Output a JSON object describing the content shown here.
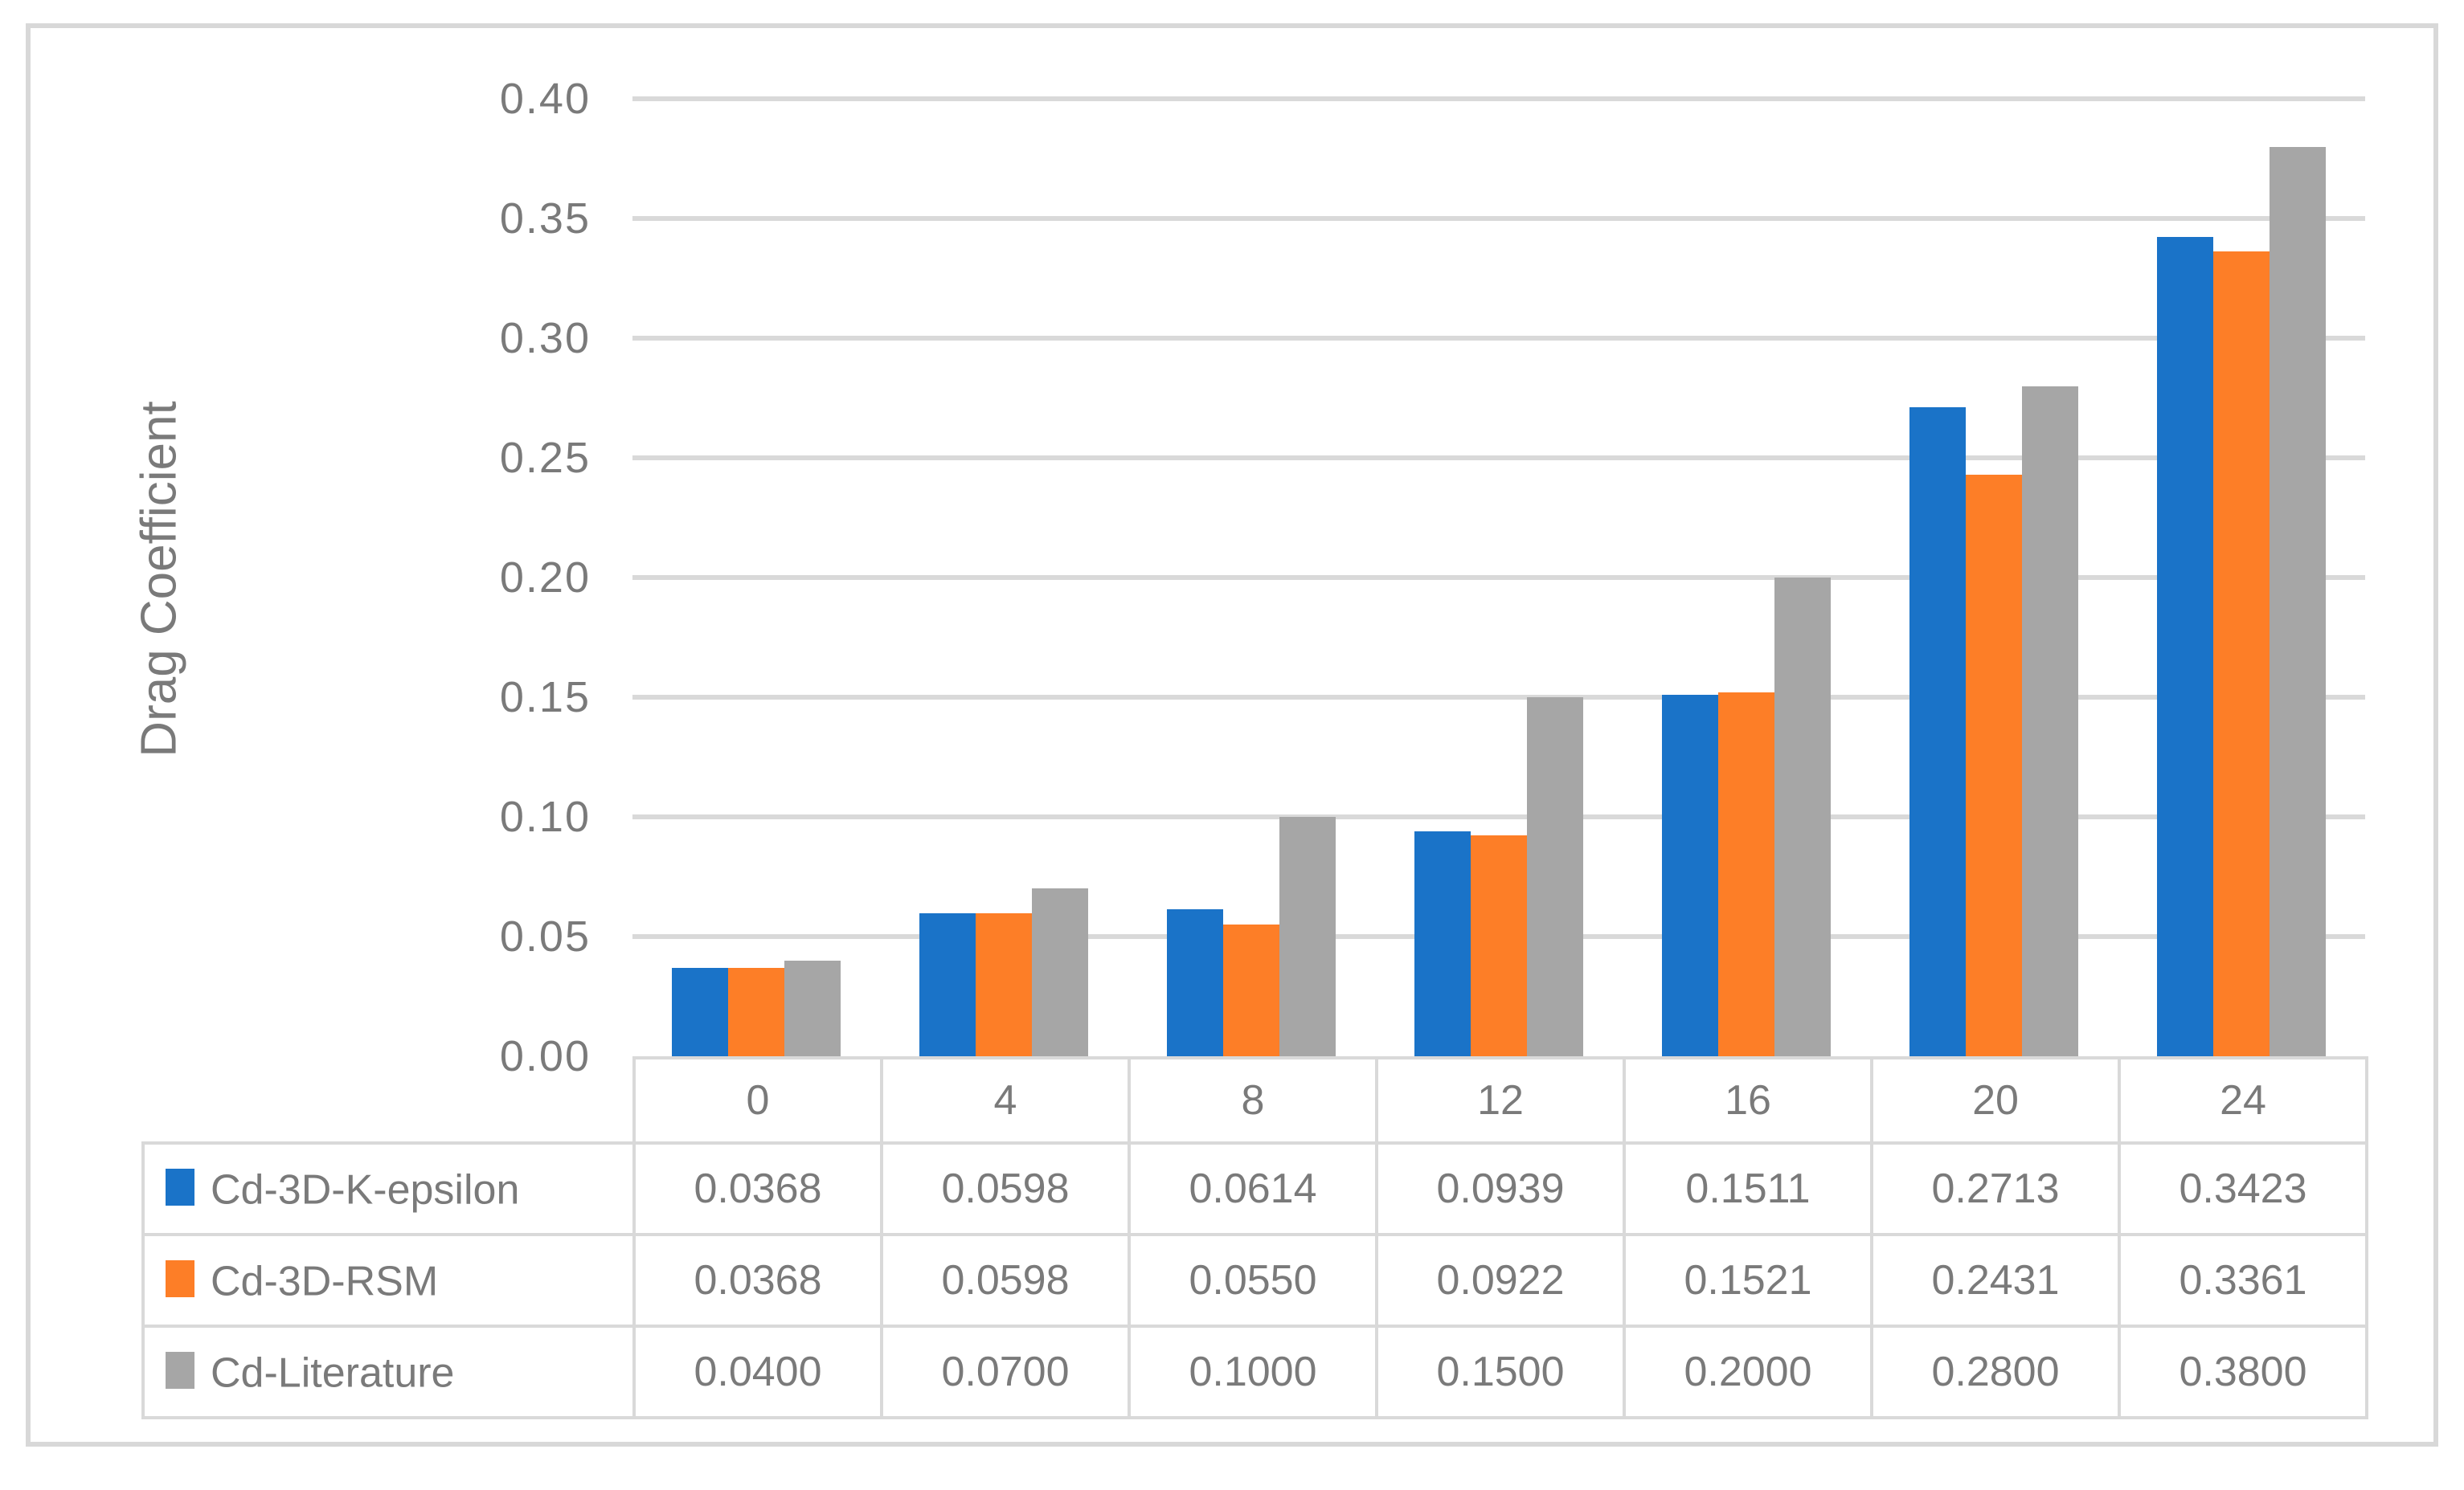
{
  "figure": {
    "background": "#FFFFFF",
    "frame_color": "#D8D8D8",
    "grid_color": "#D9D9D9",
    "text_color": "#7A7A7A"
  },
  "chart_data": {
    "type": "bar",
    "title": "",
    "xlabel": "",
    "ylabel": "Drag Coefficient",
    "categories": [
      "0",
      "4",
      "8",
      "12",
      "16",
      "20",
      "24"
    ],
    "series": [
      {
        "name": "Cd-3D-K-epsilon",
        "color": "#1A73C8",
        "values": [
          0.0368,
          0.0598,
          0.0614,
          0.0939,
          0.1511,
          0.2713,
          0.3423
        ]
      },
      {
        "name": "Cd-3D-RSM",
        "color": "#FD7E27",
        "values": [
          0.0368,
          0.0598,
          0.055,
          0.0922,
          0.1521,
          0.2431,
          0.3361
        ]
      },
      {
        "name": "Cd-Literature",
        "color": "#A6A6A6",
        "values": [
          0.04,
          0.07,
          0.1,
          0.15,
          0.2,
          0.28,
          0.38
        ]
      }
    ],
    "ylim": [
      0.0,
      0.4
    ],
    "ytick_step": 0.05,
    "ytick_labels": [
      "0.00",
      "0.05",
      "0.10",
      "0.15",
      "0.20",
      "0.25",
      "0.30",
      "0.35",
      "0.40"
    ],
    "grid": true,
    "legend_position": "data-table-left-column",
    "data_table_shown": true
  },
  "table": {
    "header": [
      "0",
      "4",
      "8",
      "12",
      "16",
      "20",
      "24"
    ],
    "rows": [
      {
        "label": "Cd-3D-K-epsilon",
        "key_color": "#1A73C8",
        "values": [
          "0.0368",
          "0.0598",
          "0.0614",
          "0.0939",
          "0.1511",
          "0.2713",
          "0.3423"
        ]
      },
      {
        "label": "Cd-3D-RSM",
        "key_color": "#FD7E27",
        "values": [
          "0.0368",
          "0.0598",
          "0.0550",
          "0.0922",
          "0.1521",
          "0.2431",
          "0.3361"
        ]
      },
      {
        "label": "Cd-Literature",
        "key_color": "#A6A6A6",
        "values": [
          "0.0400",
          "0.0700",
          "0.1000",
          "0.1500",
          "0.2000",
          "0.2800",
          "0.3800"
        ]
      }
    ]
  }
}
